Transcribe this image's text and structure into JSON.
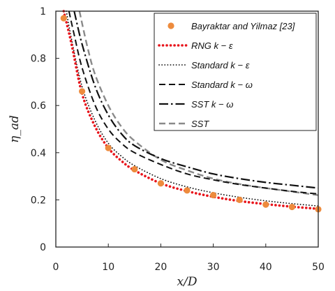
{
  "chart_data": {
    "type": "line",
    "xlabel": "x/D",
    "ylabel": "η_ad",
    "xlim": [
      0,
      50
    ],
    "ylim": [
      0,
      1
    ],
    "xticks": [
      0,
      10,
      20,
      30,
      40,
      50
    ],
    "yticks": [
      0,
      0.2,
      0.4,
      0.6,
      0.8,
      1
    ],
    "ytick_labels": [
      "0",
      "0.2",
      "0.4",
      "0.6",
      "0.8",
      "1"
    ],
    "grid": false,
    "legend_position": "top-right",
    "series": [
      {
        "name": "Bayraktar and Yilmaz [23]",
        "kind": "scatter",
        "color": "#ed8b3d",
        "x": [
          1.5,
          5,
          10,
          15,
          20,
          25,
          30,
          35,
          40,
          45,
          50
        ],
        "y": [
          0.97,
          0.66,
          0.42,
          0.33,
          0.27,
          0.24,
          0.22,
          0.2,
          0.18,
          0.17,
          0.16
        ]
      },
      {
        "name": "RNG k − ε",
        "kind": "line",
        "style": "red-dotted",
        "color": "#e8141b",
        "x": [
          1.5,
          3,
          5,
          7.5,
          10,
          12.5,
          15,
          20,
          25,
          30,
          35,
          40,
          45,
          50
        ],
        "y": [
          1.0,
          0.86,
          0.65,
          0.51,
          0.42,
          0.365,
          0.325,
          0.27,
          0.237,
          0.213,
          0.195,
          0.182,
          0.171,
          0.162
        ]
      },
      {
        "name": "Standard k − ε",
        "kind": "line",
        "style": "dotted",
        "color": "#111111",
        "x": [
          2,
          3,
          5,
          7.5,
          10,
          12.5,
          15,
          20,
          25,
          30,
          35,
          40,
          45,
          50
        ],
        "y": [
          1.0,
          0.88,
          0.68,
          0.535,
          0.44,
          0.385,
          0.345,
          0.29,
          0.255,
          0.23,
          0.211,
          0.196,
          0.184,
          0.174
        ]
      },
      {
        "name": "Standard k − ω",
        "kind": "line",
        "style": "dashed",
        "color": "#111111",
        "x": [
          2.5,
          3.5,
          5,
          7.5,
          10,
          12.5,
          15,
          20,
          25,
          30,
          35,
          40,
          45,
          50
        ],
        "y": [
          1.0,
          0.9,
          0.76,
          0.6,
          0.5,
          0.44,
          0.4,
          0.35,
          0.31,
          0.285,
          0.265,
          0.25,
          0.236,
          0.225
        ]
      },
      {
        "name": "SST k − ω",
        "kind": "line",
        "style": "dash-dot",
        "color": "#111111",
        "x": [
          3.5,
          5,
          7.5,
          10,
          12.5,
          15,
          20,
          25,
          30,
          35,
          40,
          45,
          50
        ],
        "y": [
          1.0,
          0.86,
          0.68,
          0.56,
          0.48,
          0.43,
          0.375,
          0.34,
          0.31,
          0.29,
          0.274,
          0.262,
          0.25
        ]
      },
      {
        "name": "SST",
        "kind": "line",
        "style": "gray-dashed",
        "color": "#8a8a8a",
        "x": [
          4.5,
          6,
          7.5,
          10,
          12.5,
          15,
          20,
          25,
          30,
          35,
          40,
          45,
          50
        ],
        "y": [
          1.0,
          0.85,
          0.73,
          0.6,
          0.51,
          0.45,
          0.37,
          0.325,
          0.29,
          0.267,
          0.25,
          0.235,
          0.22
        ]
      }
    ]
  }
}
